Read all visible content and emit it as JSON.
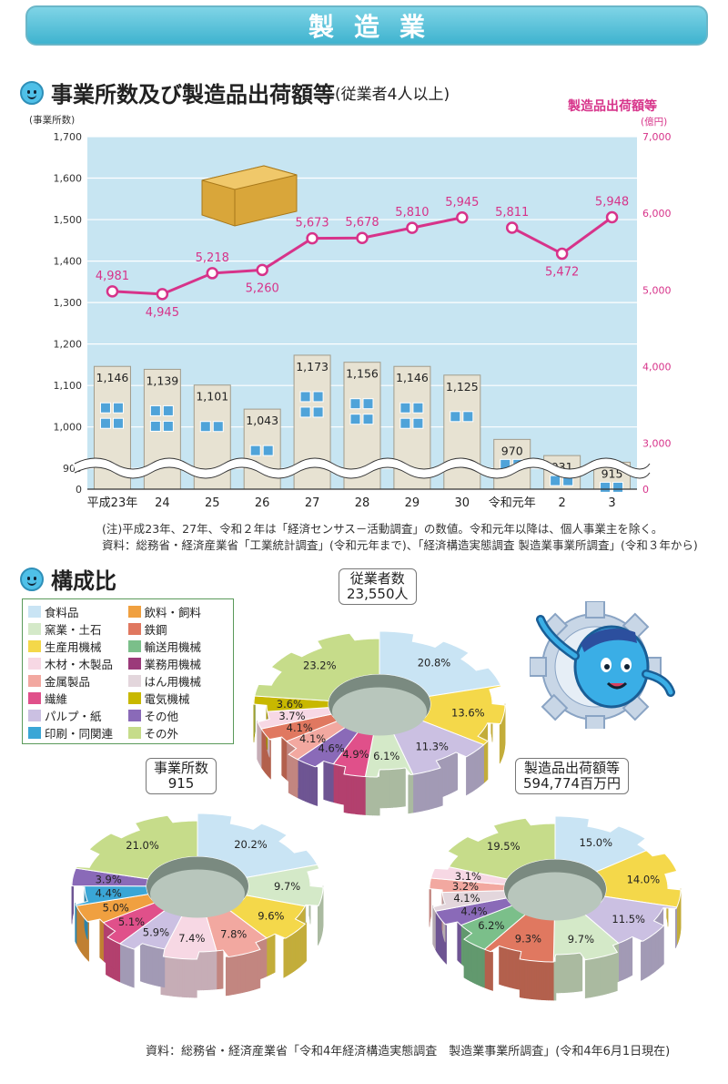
{
  "banner": {
    "title": "製造業"
  },
  "section1": {
    "title": "事業所数及び製造品出荷額等",
    "subtitle": "(従業者4人以上)"
  },
  "chart_data": {
    "type": "bar",
    "left_axis": {
      "label": "(事業所数)",
      "ticks": [
        "0",
        "900",
        "1,000",
        "1,100",
        "1,200",
        "1,300",
        "1,400",
        "1,500",
        "1,600",
        "1,700"
      ],
      "range": [
        850,
        1700
      ],
      "axis_break": true
    },
    "right_axis": {
      "label": "製造品出荷額等",
      "unit": "(億円)",
      "ticks": [
        "0",
        "3,000",
        "4,000",
        "5,000",
        "6,000",
        "7,000"
      ],
      "range": [
        2400,
        7000
      ],
      "axis_break": true
    },
    "categories": [
      "平成23年",
      "24",
      "25",
      "26",
      "27",
      "28",
      "29",
      "30",
      "令和元年",
      "2",
      "3"
    ],
    "series": [
      {
        "kind": "bar",
        "values": [
          1146,
          1139,
          1101,
          1043,
          1173,
          1156,
          1146,
          1125,
          970,
          931,
          915
        ],
        "labels": [
          "1,146",
          "1,139",
          "1,101",
          "1,043",
          "1,173",
          "1,156",
          "1,146",
          "1,125",
          "970",
          "931",
          "915"
        ]
      },
      {
        "name": "製造品出荷額等",
        "kind": "line",
        "axis": "right",
        "values": [
          4981,
          4945,
          5218,
          5260,
          5673,
          5678,
          5810,
          5945,
          5811,
          5472,
          5948
        ],
        "labels": [
          "4,981",
          "4,945",
          "5,218",
          "5,260",
          "5,673",
          "5,678",
          "5,810",
          "5,945",
          "5,811",
          "5,472",
          "5,948"
        ],
        "segments": [
          [
            0,
            7
          ],
          [
            8,
            10
          ]
        ]
      }
    ],
    "colors": {
      "plot_bg": "#c7e5f2",
      "bar": "#e7e2d2",
      "bar_edge": "#a19c8c",
      "window": "#4fa3d9",
      "line": "#d7338a"
    }
  },
  "notes": {
    "note1": "(注)平成23年、27年、令和２年は「経済センサス－活動調査」の数値。令和元年以降は、個人事業主を除く。",
    "source1": "資料：総務省・経済産業省「工業統計調査」(令和元年まで)、「経済構造実態調査 製造業事業所調査」(令和３年から)",
    "source2": "資料：総務省・経済産業省「令和4年経済構造実態調査　製造業事業所調査」(令和4年6月1日現在)"
  },
  "section2": {
    "title": "構成比"
  },
  "legend": [
    {
      "label": "食料品",
      "color": "#c9e4f4"
    },
    {
      "label": "飲料・飼料",
      "color": "#f0a040"
    },
    {
      "label": "窯業・土石",
      "color": "#d4e9c8"
    },
    {
      "label": "鉄鋼",
      "color": "#e07860"
    },
    {
      "label": "生産用機械",
      "color": "#f4d84a"
    },
    {
      "label": "輸送用機械",
      "color": "#7bbf8a"
    },
    {
      "label": "木材・木製品",
      "color": "#f7d8e4"
    },
    {
      "label": "業務用機械",
      "color": "#9b3a7a"
    },
    {
      "label": "金属製品",
      "color": "#f2a8a0"
    },
    {
      "label": "はん用機械",
      "color": "#e3d6dc"
    },
    {
      "label": "繊維",
      "color": "#e0508a"
    },
    {
      "label": "電気機械",
      "color": "#c8b800"
    },
    {
      "label": "パルプ・紙",
      "color": "#cbc0e2"
    },
    {
      "label": "その他",
      "color": "#8a6ab8"
    },
    {
      "label": "印刷・同関連",
      "color": "#3aa6d6"
    },
    {
      "label": "その外",
      "color": "#c6dc8a"
    }
  ],
  "donuts": [
    {
      "title": "従業者数",
      "total": "23,550人",
      "slices": [
        {
          "value": 20.8,
          "label": "20.8%",
          "color": "#c9e4f4"
        },
        {
          "value": 13.6,
          "label": "13.6%",
          "color": "#f4d84a"
        },
        {
          "value": 11.3,
          "label": "11.3%",
          "color": "#cbc0e2"
        },
        {
          "value": 6.1,
          "label": "6.1%",
          "color": "#d4e9c8"
        },
        {
          "value": 4.9,
          "label": "4.9%",
          "color": "#e0508a"
        },
        {
          "value": 4.6,
          "label": "4.6%",
          "color": "#8a6ab8"
        },
        {
          "value": 4.1,
          "label": "4.1%",
          "color": "#f2a8a0"
        },
        {
          "value": 4.1,
          "label": "4.1%",
          "color": "#e07860"
        },
        {
          "value": 3.7,
          "label": "3.7%",
          "color": "#f7d8e4"
        },
        {
          "value": 3.6,
          "label": "3.6%",
          "color": "#c8b800"
        },
        {
          "value": 23.2,
          "label": "23.2%",
          "color": "#c6dc8a"
        }
      ]
    },
    {
      "title": "事業所数",
      "total": "915",
      "slices": [
        {
          "value": 20.2,
          "label": "20.2%",
          "color": "#c9e4f4"
        },
        {
          "value": 9.7,
          "label": "9.7%",
          "color": "#d4e9c8"
        },
        {
          "value": 9.6,
          "label": "9.6%",
          "color": "#f4d84a"
        },
        {
          "value": 7.8,
          "label": "7.8%",
          "color": "#f2a8a0"
        },
        {
          "value": 7.4,
          "label": "7.4%",
          "color": "#f7d8e4"
        },
        {
          "value": 5.9,
          "label": "5.9%",
          "color": "#cbc0e2"
        },
        {
          "value": 5.1,
          "label": "5.1%",
          "color": "#e0508a"
        },
        {
          "value": 5.0,
          "label": "5.0%",
          "color": "#f0a040"
        },
        {
          "value": 4.4,
          "label": "4.4%",
          "color": "#3aa6d6"
        },
        {
          "value": 3.9,
          "label": "3.9%",
          "color": "#8a6ab8"
        },
        {
          "value": 21.0,
          "label": "21.0%",
          "color": "#c6dc8a"
        }
      ]
    },
    {
      "title": "製造品出荷額等",
      "total": "594,774百万円",
      "slices": [
        {
          "value": 15.0,
          "label": "15.0%",
          "color": "#c9e4f4"
        },
        {
          "value": 14.0,
          "label": "14.0%",
          "color": "#f4d84a"
        },
        {
          "value": 11.5,
          "label": "11.5%",
          "color": "#cbc0e2"
        },
        {
          "value": 9.7,
          "label": "9.7%",
          "color": "#d4e9c8"
        },
        {
          "value": 9.3,
          "label": "9.3%",
          "color": "#e07860"
        },
        {
          "value": 6.2,
          "label": "6.2%",
          "color": "#7bbf8a"
        },
        {
          "value": 4.4,
          "label": "4.4%",
          "color": "#8a6ab8"
        },
        {
          "value": 4.1,
          "label": "4.1%",
          "color": "#e3d6dc"
        },
        {
          "value": 3.2,
          "label": "3.2%",
          "color": "#f2a8a0"
        },
        {
          "value": 3.1,
          "label": "3.1%",
          "color": "#f7d8e4"
        },
        {
          "value": 19.5,
          "label": "19.5%",
          "color": "#c6dc8a"
        }
      ]
    }
  ]
}
